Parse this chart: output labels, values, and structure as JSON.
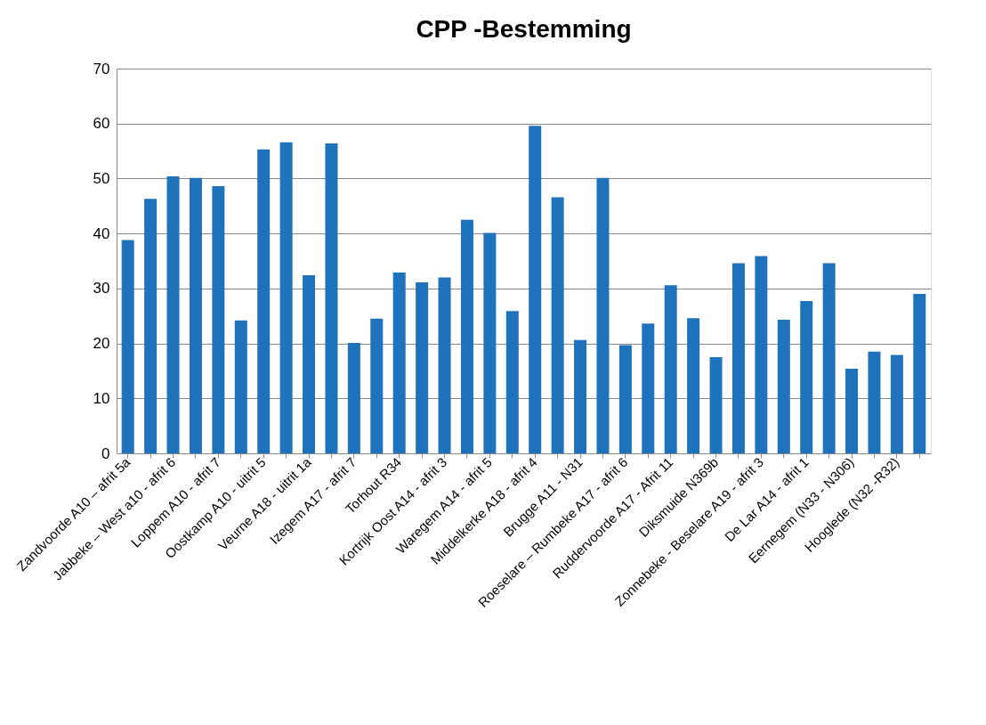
{
  "chart_data": {
    "type": "bar",
    "title": "CPP -Bestemming",
    "categories": [
      "Zandvoorde A10 – afrit 5a",
      null,
      "Jabbeke – West  a10 - afrit 6",
      null,
      "Loppem A10 - afrit 7",
      null,
      "Oostkamp A10 - uitrit 5",
      null,
      "Veurne A18 - uitrit 1a",
      null,
      "Izegem A17 - afrit 7",
      null,
      "Torhout R34",
      null,
      "Kortrijk Oost A14 - afrit 3",
      null,
      "Waregem A14 - afrit 5",
      null,
      "Middelkerke A18 - afrit 4",
      null,
      "Brugge A11 - N31",
      null,
      "Roeselare – Rumbeke A17 - afrit 6",
      null,
      "Ruddervoorde A17 - Afrit 11",
      null,
      "Diksmuide N369b",
      null,
      "Zonnebeke - Beselare A19 - afrit 3",
      null,
      "De Lar  A14 - afrit 1",
      null,
      "Eernegem (N33 - N306)",
      null,
      "Hooglede (N32 -R32)",
      null
    ],
    "values": [
      38.8,
      46.3,
      50.4,
      50.1,
      48.6,
      24.2,
      55.3,
      56.6,
      32.4,
      56.4,
      20.1,
      24.5,
      32.9,
      31.1,
      32.0,
      42.5,
      40.1,
      25.9,
      59.6,
      46.6,
      20.6,
      50.1,
      19.7,
      23.6,
      30.6,
      24.6,
      17.5,
      34.6,
      35.9,
      24.3,
      27.7,
      34.6,
      15.4,
      18.5,
      17.9,
      29.0
    ],
    "color": "#1f72bc",
    "ylim": [
      0,
      70
    ],
    "yticks": [
      0,
      10,
      20,
      30,
      40,
      50,
      60,
      70
    ],
    "grid": "y"
  }
}
